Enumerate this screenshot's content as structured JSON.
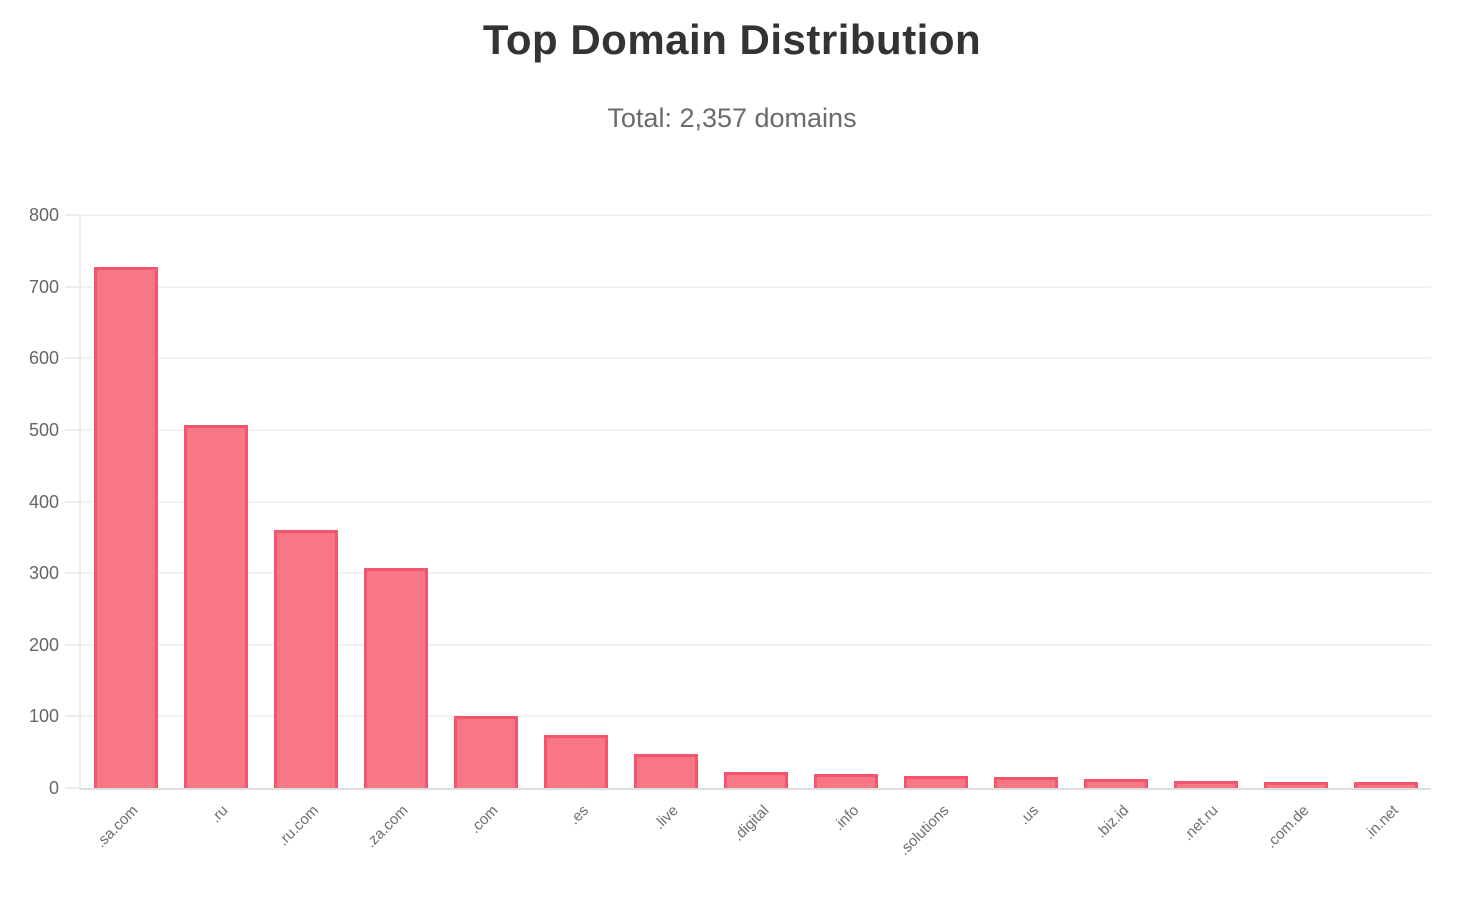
{
  "header": {
    "title": "Top Domain Distribution",
    "subtitle": "Total: 2,357 domains"
  },
  "chart_data": {
    "type": "bar",
    "title": "Top Domain Distribution",
    "subtitle": "Total: 2,357 domains",
    "categories": [
      ".sa.com",
      ".ru",
      ".ru.com",
      ".za.com",
      ".com",
      ".es",
      ".live",
      ".digital",
      ".info",
      ".solutions",
      ".us",
      ".biz.id",
      ".net.ru",
      ".com.de",
      ".in.net"
    ],
    "values": [
      727,
      507,
      360,
      307,
      100,
      74,
      48,
      23,
      20,
      17,
      15,
      12,
      10,
      9,
      8
    ],
    "xlabel": "",
    "ylabel": "",
    "ylim": [
      0,
      800
    ],
    "yticks": [
      0,
      100,
      200,
      300,
      400,
      500,
      600,
      700,
      800
    ],
    "grid": true,
    "legend": false,
    "x_tick_rotation_deg": -45,
    "colors": {
      "bar_fill": "#f77787",
      "bar_border": "#f2566e",
      "gridline": "#f2f2f2",
      "axis_line": "#dedede",
      "tick_label": "#666666",
      "title": "#333333",
      "subtitle": "#6b6b6b",
      "background": "#ffffff"
    }
  }
}
